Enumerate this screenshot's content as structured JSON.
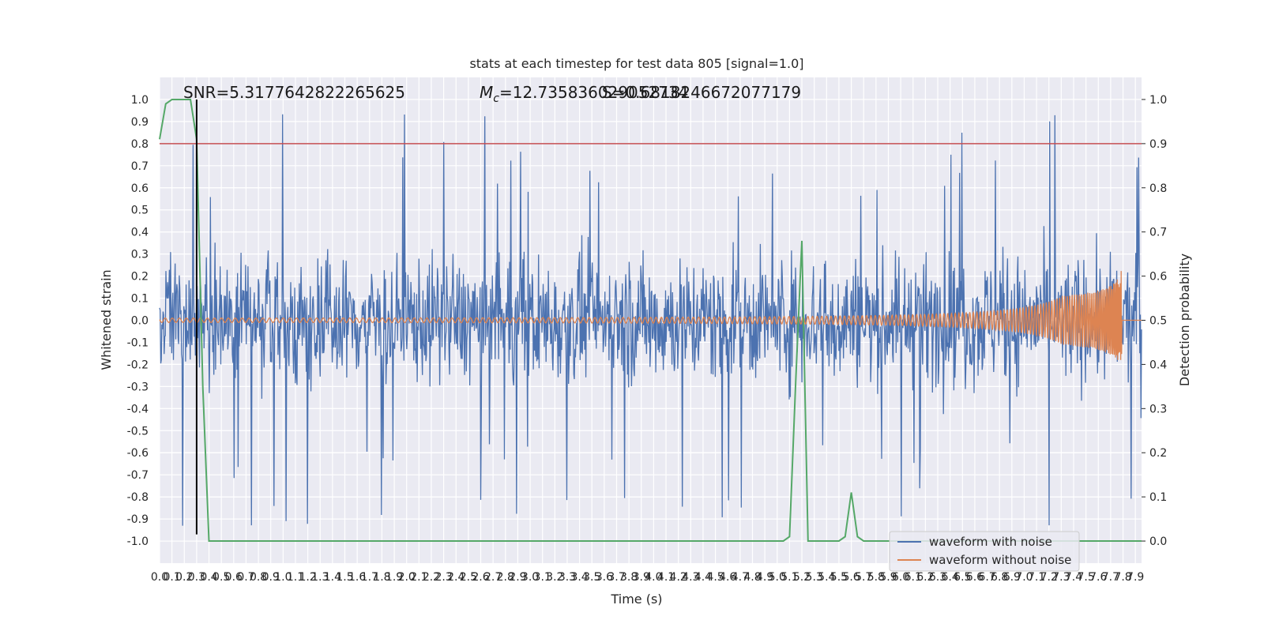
{
  "chart_data": {
    "type": "line",
    "title": "stats at each timestep for test data 805 [signal=1.0]",
    "xlabel": "Time (s)",
    "ylabel": "Whitened strain",
    "ylabel_right": "Detection probability",
    "xlim": [
      0.0,
      7.95
    ],
    "ylim": [
      -1.1,
      1.1
    ],
    "ylim_right": [
      -0.05,
      1.05
    ],
    "x_ticks": [
      "0.0",
      "0.1",
      "0.2",
      "0.3",
      "0.4",
      "0.5",
      "0.6",
      "0.7",
      "0.8",
      "0.9",
      "1.0",
      "1.1",
      "1.2",
      "1.3",
      "1.4",
      "1.5",
      "1.6",
      "1.7",
      "1.8",
      "1.9",
      "2.0",
      "2.1",
      "2.2",
      "2.3",
      "2.4",
      "2.5",
      "2.6",
      "2.7",
      "2.8",
      "2.9",
      "3.0",
      "3.1",
      "3.2",
      "3.3",
      "3.4",
      "3.5",
      "3.6",
      "3.7",
      "3.8",
      "3.9",
      "4.0",
      "4.1",
      "4.2",
      "4.3",
      "4.4",
      "4.5",
      "4.6",
      "4.7",
      "4.8",
      "4.9",
      "5.0",
      "5.1",
      "5.2",
      "5.3",
      "5.4",
      "5.5",
      "5.6",
      "5.7",
      "5.8",
      "5.9",
      "6.0",
      "6.1",
      "6.2",
      "6.3",
      "6.4",
      "6.5",
      "6.6",
      "6.7",
      "6.8",
      "6.9",
      "7.0",
      "7.1",
      "7.2",
      "7.3",
      "7.4",
      "7.5",
      "7.6",
      "7.7",
      "7.8",
      "7.9"
    ],
    "y_ticks_left": [
      "1.0",
      "0.9",
      "0.8",
      "0.7",
      "0.6",
      "0.5",
      "0.4",
      "0.3",
      "0.2",
      "0.1",
      "0.0",
      "-0.1",
      "-0.2",
      "-0.3",
      "-0.4",
      "-0.5",
      "-0.6",
      "-0.7",
      "-0.8",
      "-0.9",
      "-1.0"
    ],
    "y_ticks_right": [
      "1.0",
      "0.9",
      "0.8",
      "0.7",
      "0.6",
      "0.5",
      "0.4",
      "0.3",
      "0.2",
      "0.1",
      "0.0"
    ],
    "grid": true,
    "legend_position": "lower right",
    "annotations": {
      "snr": "SNR=5.3177642822265625",
      "mc": "=12.735836029052734",
      "mc_symbol": "M",
      "mc_subscript": "c",
      "overlap": "S=0.6818246672077179"
    },
    "vertical_marker_x": 0.3,
    "threshold_y_right": 0.9,
    "series": [
      {
        "name": "waveform with noise",
        "axis": "left",
        "color": "#4c72b0",
        "description_envelope": {
          "typical_upper": 0.45,
          "typical_lower": -0.45,
          "peak": 1.0,
          "trough": -0.95
        }
      },
      {
        "name": "waveform without noise",
        "axis": "left",
        "color": "#dd8452",
        "chirp_end_x": 7.79,
        "chirp_peak": 0.26,
        "chirp_trough": -0.18
      },
      {
        "name": "",
        "axis": "right",
        "color": "#55a868",
        "x": [
          0.0,
          0.05,
          0.1,
          0.15,
          0.2,
          0.25,
          0.3,
          0.35,
          0.4,
          5.05,
          5.1,
          5.15,
          5.2,
          5.25,
          5.5,
          5.55,
          5.6,
          5.65,
          5.7,
          7.95
        ],
        "y": [
          0.91,
          0.99,
          1.0,
          1.0,
          1.0,
          1.0,
          0.91,
          0.35,
          0.0,
          0.0,
          0.01,
          0.36,
          0.68,
          0.0,
          0.0,
          0.01,
          0.11,
          0.01,
          0.0,
          0.0
        ]
      }
    ],
    "colors": {
      "background": "#eaeaf2",
      "grid": "#ffffff",
      "threshold": "#c44e52",
      "marker": "#000000"
    }
  }
}
